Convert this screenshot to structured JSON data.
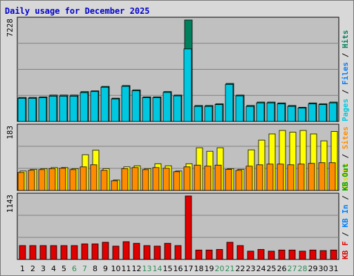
{
  "chart_data": {
    "type": "bar",
    "title": "Daily usage for December 2025",
    "categories": [
      "1",
      "2",
      "3",
      "4",
      "5",
      "6",
      "7",
      "8",
      "9",
      "10",
      "11",
      "12",
      "13",
      "14",
      "15",
      "16",
      "17",
      "18",
      "19",
      "20",
      "21",
      "22",
      "23",
      "24",
      "25",
      "26",
      "27",
      "28",
      "29",
      "30",
      "31"
    ],
    "weekend_days": [
      "6",
      "7",
      "13",
      "14",
      "20",
      "21",
      "27",
      "28"
    ],
    "panels": [
      {
        "ymax_label": "7228",
        "ylim": [
          0,
          7228
        ],
        "right_label": [
          "Pages",
          "/",
          "Files",
          "/",
          "Hits"
        ],
        "series": [
          {
            "name": "Hits",
            "color": "#00805c",
            "values": [
              1715,
              1715,
              1750,
              1880,
              1880,
              1880,
              2130,
              2180,
              2500,
              1660,
              2560,
              2250,
              1750,
              1750,
              2130,
              1880,
              7228,
              1140,
              1140,
              1260,
              2710,
              1880,
              1140,
              1380,
              1380,
              1320,
              1140,
              1010,
              1320,
              1260,
              1380
            ]
          },
          {
            "name": "Files",
            "color": "#00c8e0",
            "values": [
              1650,
              1650,
              1700,
              1800,
              1800,
              1800,
              2050,
              2130,
              2440,
              1600,
              2500,
              2190,
              1700,
              1700,
              2070,
              1820,
              5170,
              1070,
              1070,
              1200,
              2640,
              1820,
              1070,
              1320,
              1320,
              1250,
              1070,
              950,
              1250,
              1200,
              1320
            ]
          },
          {
            "name": "Pages",
            "color": "#00b4dc",
            "values": [
              1650,
              1650,
              1700,
              1800,
              1800,
              1800,
              2050,
              2130,
              2440,
              1600,
              2500,
              2190,
              1700,
              1700,
              2070,
              1820,
              5170,
              1070,
              1070,
              1200,
              2640,
              1820,
              1070,
              1320,
              1320,
              1250,
              1070,
              950,
              1250,
              1200,
              1320
            ]
          }
        ]
      },
      {
        "ymax_label": "183",
        "ylim": [
          0,
          183
        ],
        "right_label": [
          "Visits",
          "/",
          "Sites"
        ],
        "series": [
          {
            "name": "Visits",
            "color": "#ffff00",
            "values": [
              56,
              61,
              63,
              66,
              66,
              63,
              103,
              116,
              63,
              30,
              68,
              71,
              63,
              77,
              71,
              56,
              77,
              123,
              113,
              123,
              63,
              61,
              117,
              145,
              163,
              173,
              168,
              173,
              163,
              143,
              170
            ]
          },
          {
            "name": "Sites",
            "color": "#ff8c00",
            "values": [
              52,
              58,
              60,
              63,
              64,
              60,
              68,
              74,
              58,
              28,
              63,
              66,
              60,
              66,
              64,
              54,
              68,
              73,
              70,
              73,
              61,
              58,
              70,
              74,
              76,
              76,
              74,
              76,
              78,
              80,
              80
            ]
          }
        ]
      },
      {
        "ymax_label": "1143",
        "ylim": [
          0,
          1143
        ],
        "right_label": [
          "KB F",
          "/",
          "KB In",
          "/",
          "KB Out"
        ],
        "series": [
          {
            "name": "KB F",
            "color": "#e00000",
            "values": [
              250,
              250,
              250,
              250,
              250,
              250,
              280,
              280,
              310,
              240,
              320,
              290,
              250,
              240,
              290,
              250,
              1143,
              170,
              170,
              180,
              310,
              250,
              150,
              180,
              150,
              170,
              170,
              150,
              170,
              160,
              170
            ]
          }
        ]
      }
    ]
  }
}
